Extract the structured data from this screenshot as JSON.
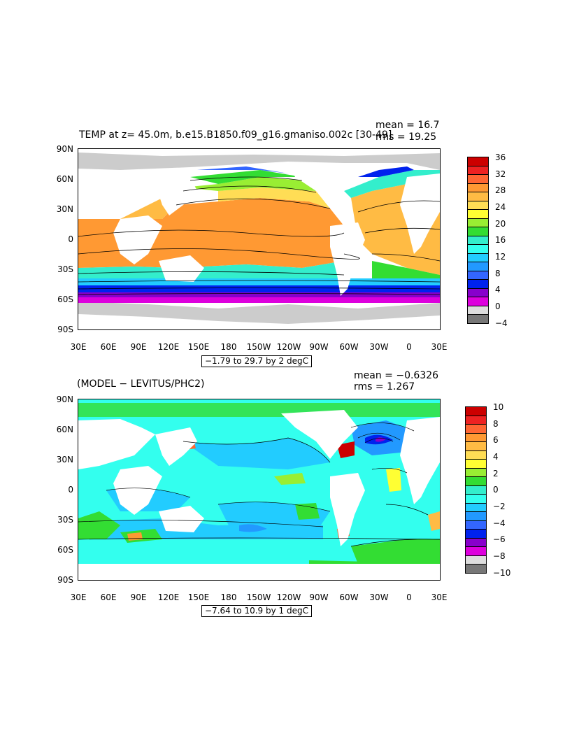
{
  "panels": [
    {
      "title": "TEMP at z=  45.0m, b.e15.B1850.f09_g16.gmaniso.002c  [30-49]",
      "mean": "mean = 16.7",
      "rms": "rms = 19.25",
      "range": "−1.79 to 29.7 by 2 degC",
      "lat_labels": [
        "90N",
        "60N",
        "30N",
        "0",
        "30S",
        "60S",
        "90S"
      ],
      "lon_labels": [
        "30E",
        "60E",
        "90E",
        "120E",
        "150E",
        "180",
        "150W",
        "120W",
        "90W",
        "60W",
        "30W",
        "0",
        "30E"
      ],
      "colorbar_labels": [
        "36",
        "32",
        "28",
        "24",
        "20",
        "16",
        "12",
        "8",
        "4",
        "0",
        "−4"
      ],
      "colorbar_colors": [
        "#cc0000",
        "#ee2222",
        "#ff6633",
        "#ff9933",
        "#ffbb44",
        "#ffdd55",
        "#ffff33",
        "#99ee33",
        "#33dd33",
        "#33eecc",
        "#33ffee",
        "#22ccff",
        "#2299ff",
        "#3366ff",
        "#0022ee",
        "#8800cc",
        "#dd00dd",
        "#dddddd",
        "#777777"
      ]
    },
    {
      "title": "(MODEL − LEVITUS/PHC2)",
      "mean": "mean = −0.6326",
      "rms": "rms = 1.267",
      "range": "−7.64 to 10.9 by 1 degC",
      "lat_labels": [
        "90N",
        "60N",
        "30N",
        "0",
        "30S",
        "60S",
        "90S"
      ],
      "lon_labels": [
        "30E",
        "60E",
        "90E",
        "120E",
        "150E",
        "180",
        "150W",
        "120W",
        "90W",
        "60W",
        "30W",
        "0",
        "30E"
      ],
      "colorbar_labels": [
        "10",
        "8",
        "6",
        "4",
        "2",
        "0",
        "−2",
        "−4",
        "−6",
        "−8",
        "−10"
      ],
      "colorbar_colors": [
        "#cc0000",
        "#ee2222",
        "#ff6633",
        "#ff9933",
        "#ffbb44",
        "#ffdd55",
        "#ffff33",
        "#99ee33",
        "#33dd33",
        "#33eecc",
        "#33ffee",
        "#22ccff",
        "#2299ff",
        "#3366ff",
        "#0022ee",
        "#8800cc",
        "#dd00dd",
        "#dddddd",
        "#777777"
      ]
    }
  ]
}
